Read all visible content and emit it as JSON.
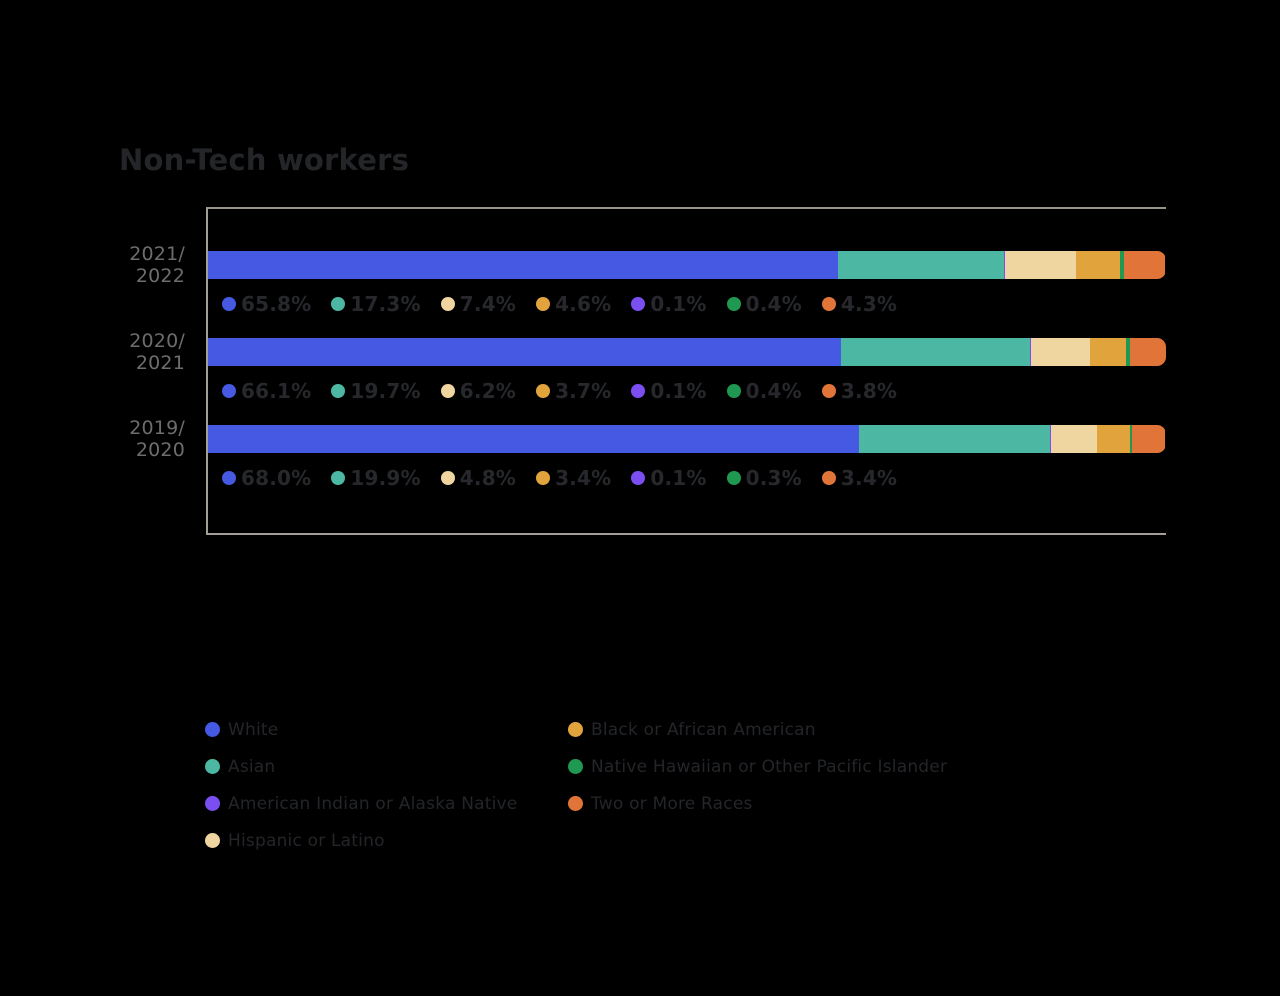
{
  "title": "Non-Tech workers",
  "chart_data": {
    "type": "bar",
    "stacked": true,
    "orientation": "horizontal",
    "title": "Non-Tech workers",
    "categories": [
      "2021/2022",
      "2020/2021",
      "2019/2020"
    ],
    "unit": "%",
    "xlim": [
      0,
      100
    ],
    "grid": false,
    "legend_position": "bottom",
    "series": [
      {
        "name": "White",
        "color": "#4559e2",
        "values": [
          65.8,
          66.1,
          68.0
        ]
      },
      {
        "name": "Asian",
        "color": "#4cb8a3",
        "values": [
          17.3,
          19.7,
          19.9
        ]
      },
      {
        "name": "American Indian or Alaska Native",
        "color": "#7b4ef2",
        "values": [
          0.1,
          0.1,
          0.1
        ]
      },
      {
        "name": "Hispanic or Latino",
        "color": "#efd5a0",
        "values": [
          7.4,
          6.2,
          4.8
        ]
      },
      {
        "name": "Black or African American",
        "color": "#e1a33b",
        "values": [
          4.6,
          3.7,
          3.4
        ]
      },
      {
        "name": "Native Hawaiian or Other Pacific Islander",
        "color": "#1f9951",
        "values": [
          0.4,
          0.4,
          0.3
        ]
      },
      {
        "name": "Two or More Races",
        "color": "#e17439",
        "values": [
          4.3,
          3.8,
          3.4
        ]
      }
    ]
  },
  "display": {
    "rows": [
      {
        "year_line1": "2021/",
        "year_line2": "2022",
        "labels": [
          {
            "text": "65.8%"
          },
          {
            "text": "17.3%"
          },
          {
            "text": "7.4%"
          },
          {
            "text": "4.6%"
          },
          {
            "text": "0.1%"
          },
          {
            "text": "0.4%"
          },
          {
            "text": "4.3%"
          }
        ]
      },
      {
        "year_line1": "2020/",
        "year_line2": "2021",
        "labels": [
          {
            "text": "66.1%"
          },
          {
            "text": "19.7%"
          },
          {
            "text": "6.2%"
          },
          {
            "text": "3.7%"
          },
          {
            "text": "0.1%"
          },
          {
            "text": "0.4%"
          },
          {
            "text": "3.8%"
          }
        ]
      },
      {
        "year_line1": "2019/",
        "year_line2": "2020",
        "labels": [
          {
            "text": "68.0%"
          },
          {
            "text": "19.9%"
          },
          {
            "text": "4.8%"
          },
          {
            "text": "3.4%"
          },
          {
            "text": "0.1%"
          },
          {
            "text": "0.3%"
          },
          {
            "text": "3.4%"
          }
        ]
      }
    ]
  }
}
